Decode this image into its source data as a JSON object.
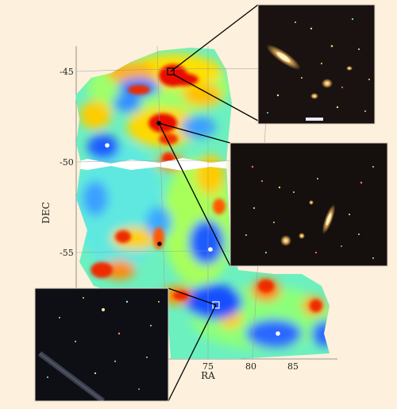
{
  "figure": {
    "colors": {
      "page_bg": "#fdf0dc",
      "map_blue": "#1f5bff",
      "map_cyan": "#33d6ff",
      "map_green": "#87ff8a",
      "map_yellow": "#fff000",
      "map_orange": "#ff7a00",
      "map_red": "#e81000",
      "inset_bg": "#150f0d"
    },
    "axes": {
      "y_title": "DEC",
      "x_title": "RA",
      "y_ticks": [
        "-45",
        "-50",
        "-55"
      ],
      "x_ticks": [
        "75",
        "80",
        "85"
      ]
    },
    "markers": [
      {
        "name": "marker-top-square",
        "shape": "square-open"
      },
      {
        "name": "marker-cluster-dot",
        "shape": "filled-dark"
      },
      {
        "name": "marker-left-white",
        "shape": "filled-white"
      },
      {
        "name": "marker-center-dark",
        "shape": "filled-dark"
      },
      {
        "name": "marker-center-white",
        "shape": "filled-white"
      },
      {
        "name": "marker-bottom-square",
        "shape": "square-open"
      },
      {
        "name": "marker-bottom-white",
        "shape": "filled-white"
      }
    ],
    "insets": [
      {
        "name": "inset-top-right",
        "content": "galaxy-cluster-with-edge-on-spiral"
      },
      {
        "name": "inset-middle-right",
        "content": "rich-galaxy-cluster"
      },
      {
        "name": "inset-bottom-left",
        "content": "sparse-field-with-satellite-trail"
      }
    ]
  }
}
